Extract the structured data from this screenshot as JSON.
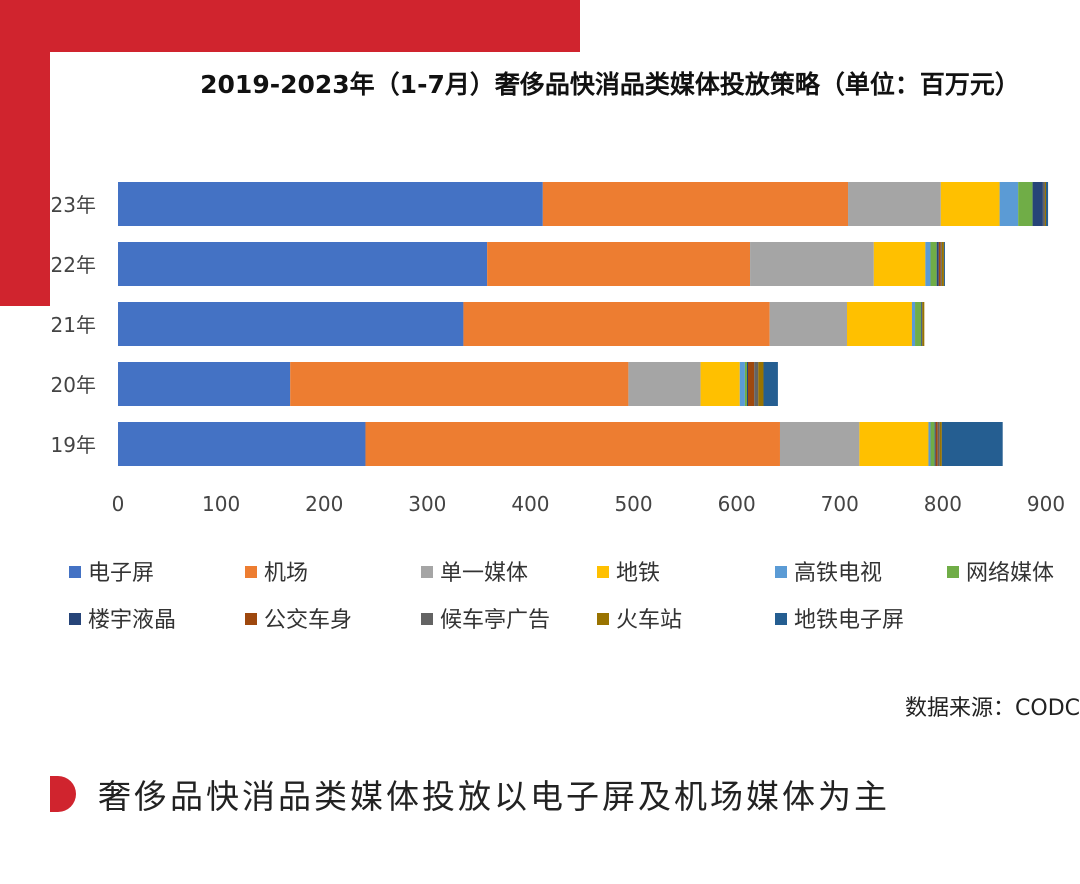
{
  "chart_data": {
    "type": "bar",
    "orientation": "horizontal",
    "stacked": true,
    "title": "2019-2023年（1-7月）奢侈品快消品类媒体投放策略（单位：百万元）",
    "categories": [
      "23年",
      "22年",
      "21年",
      "20年",
      "19年"
    ],
    "xlim": [
      0,
      900
    ],
    "xticks": [
      0,
      100,
      200,
      300,
      400,
      500,
      600,
      700,
      800,
      900
    ],
    "xlabel": "",
    "ylabel": "",
    "grid": false,
    "legend_position": "bottom",
    "series": [
      {
        "name": "电子屏",
        "color": "#4472c4",
        "values": [
          412,
          358,
          335,
          167,
          240
        ]
      },
      {
        "name": "机场",
        "color": "#ed7d31",
        "values": [
          296,
          255,
          297,
          328,
          402
        ]
      },
      {
        "name": "单一媒体",
        "color": "#a5a5a5",
        "values": [
          90,
          120,
          75,
          70,
          77
        ]
      },
      {
        "name": "地铁",
        "color": "#ffc000",
        "values": [
          57,
          50,
          63,
          38,
          67
        ]
      },
      {
        "name": "高铁电视",
        "color": "#5b9bd5",
        "values": [
          18,
          5,
          3,
          5,
          2
        ]
      },
      {
        "name": "网络媒体",
        "color": "#70ad47",
        "values": [
          14,
          6,
          6,
          2,
          4
        ]
      },
      {
        "name": "楼宇液晶",
        "color": "#264478",
        "values": [
          10,
          2,
          1,
          1,
          1
        ]
      },
      {
        "name": "公交车身",
        "color": "#9e480e",
        "values": [
          0,
          2,
          0,
          6,
          2
        ]
      },
      {
        "name": "候车亭广告",
        "color": "#636363",
        "values": [
          2,
          1,
          0,
          4,
          2
        ]
      },
      {
        "name": "火车站",
        "color": "#997300",
        "values": [
          1,
          2,
          2,
          5,
          2
        ]
      },
      {
        "name": "地铁电子屏",
        "color": "#255e91",
        "values": [
          2,
          1,
          0,
          14,
          59
        ]
      }
    ]
  },
  "source": "数据来源：CODC",
  "caption": "奢侈品快消品类媒体投放以电子屏及机场媒体为主"
}
